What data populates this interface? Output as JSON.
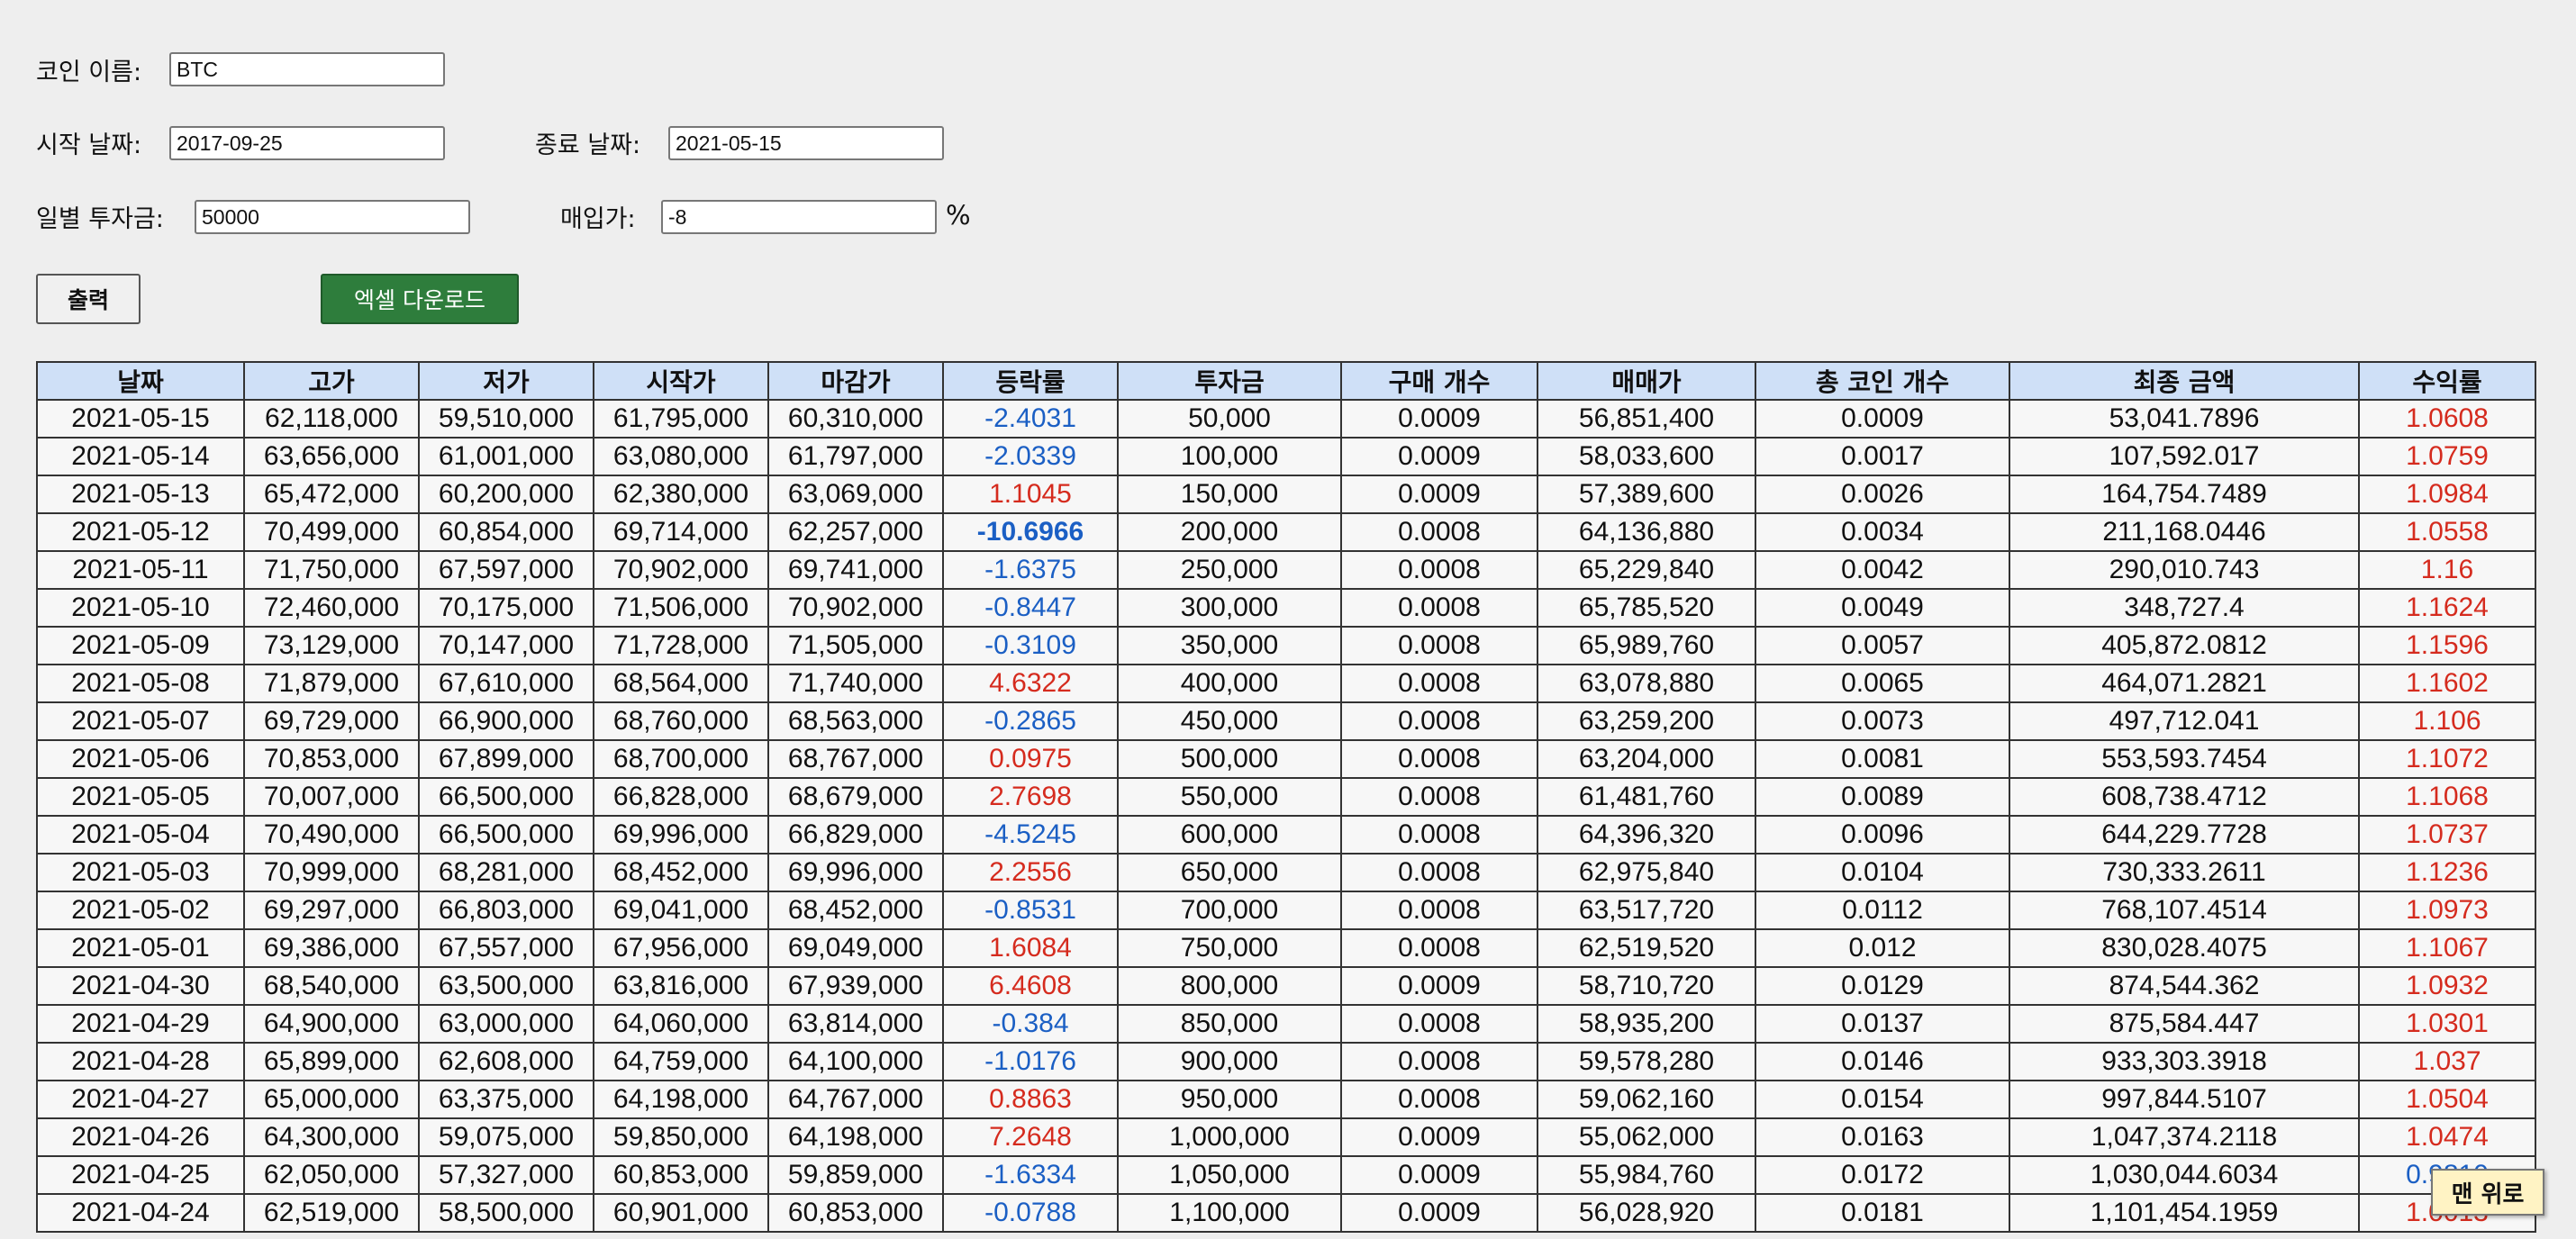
{
  "form": {
    "coin_label": "코인 이름:",
    "coin_value": "BTC",
    "start_label": "시작 날짜:",
    "start_value": "2017-09-25",
    "end_label": "종료 날짜:",
    "end_value": "2021-05-15",
    "daily_label": "일별 투자금:",
    "daily_value": "50000",
    "buy_label": "매입가:",
    "buy_value": "-8",
    "buy_unit": "%"
  },
  "buttons": {
    "print_label": "출력",
    "excel_label": "엑셀 다운로드",
    "top_label": "맨 위로"
  },
  "colors": {
    "header_bg": "#cfe0f7",
    "excel_bg": "#2e7d3c",
    "negative": "#1b5fc4",
    "positive": "#d52b1e"
  },
  "table": {
    "headers": [
      "날짜",
      "고가",
      "저가",
      "시작가",
      "마감가",
      "등락률",
      "투자금",
      "구매 개수",
      "매매가",
      "총 코인 개수",
      "최종 금액",
      "수익률"
    ],
    "rows": [
      [
        "2021-05-15",
        "62,118,000",
        "59,510,000",
        "61,795,000",
        "60,310,000",
        "-2.4031",
        "50,000",
        "0.0009",
        "56,851,400",
        "0.0009",
        "53,041.7896",
        "1.0608"
      ],
      [
        "2021-05-14",
        "63,656,000",
        "61,001,000",
        "63,080,000",
        "61,797,000",
        "-2.0339",
        "100,000",
        "0.0009",
        "58,033,600",
        "0.0017",
        "107,592.017",
        "1.0759"
      ],
      [
        "2021-05-13",
        "65,472,000",
        "60,200,000",
        "62,380,000",
        "63,069,000",
        "1.1045",
        "150,000",
        "0.0009",
        "57,389,600",
        "0.0026",
        "164,754.7489",
        "1.0984"
      ],
      [
        "2021-05-12",
        "70,499,000",
        "60,854,000",
        "69,714,000",
        "62,257,000",
        "-10.6966",
        "200,000",
        "0.0008",
        "64,136,880",
        "0.0034",
        "211,168.0446",
        "1.0558"
      ],
      [
        "2021-05-11",
        "71,750,000",
        "67,597,000",
        "70,902,000",
        "69,741,000",
        "-1.6375",
        "250,000",
        "0.0008",
        "65,229,840",
        "0.0042",
        "290,010.743",
        "1.16"
      ],
      [
        "2021-05-10",
        "72,460,000",
        "70,175,000",
        "71,506,000",
        "70,902,000",
        "-0.8447",
        "300,000",
        "0.0008",
        "65,785,520",
        "0.0049",
        "348,727.4",
        "1.1624"
      ],
      [
        "2021-05-09",
        "73,129,000",
        "70,147,000",
        "71,728,000",
        "71,505,000",
        "-0.3109",
        "350,000",
        "0.0008",
        "65,989,760",
        "0.0057",
        "405,872.0812",
        "1.1596"
      ],
      [
        "2021-05-08",
        "71,879,000",
        "67,610,000",
        "68,564,000",
        "71,740,000",
        "4.6322",
        "400,000",
        "0.0008",
        "63,078,880",
        "0.0065",
        "464,071.2821",
        "1.1602"
      ],
      [
        "2021-05-07",
        "69,729,000",
        "66,900,000",
        "68,760,000",
        "68,563,000",
        "-0.2865",
        "450,000",
        "0.0008",
        "63,259,200",
        "0.0073",
        "497,712.041",
        "1.106"
      ],
      [
        "2021-05-06",
        "70,853,000",
        "67,899,000",
        "68,700,000",
        "68,767,000",
        "0.0975",
        "500,000",
        "0.0008",
        "63,204,000",
        "0.0081",
        "553,593.7454",
        "1.1072"
      ],
      [
        "2021-05-05",
        "70,007,000",
        "66,500,000",
        "66,828,000",
        "68,679,000",
        "2.7698",
        "550,000",
        "0.0008",
        "61,481,760",
        "0.0089",
        "608,738.4712",
        "1.1068"
      ],
      [
        "2021-05-04",
        "70,490,000",
        "66,500,000",
        "69,996,000",
        "66,829,000",
        "-4.5245",
        "600,000",
        "0.0008",
        "64,396,320",
        "0.0096",
        "644,229.7728",
        "1.0737"
      ],
      [
        "2021-05-03",
        "70,999,000",
        "68,281,000",
        "68,452,000",
        "69,996,000",
        "2.2556",
        "650,000",
        "0.0008",
        "62,975,840",
        "0.0104",
        "730,333.2611",
        "1.1236"
      ],
      [
        "2021-05-02",
        "69,297,000",
        "66,803,000",
        "69,041,000",
        "68,452,000",
        "-0.8531",
        "700,000",
        "0.0008",
        "63,517,720",
        "0.0112",
        "768,107.4514",
        "1.0973"
      ],
      [
        "2021-05-01",
        "69,386,000",
        "67,557,000",
        "67,956,000",
        "69,049,000",
        "1.6084",
        "750,000",
        "0.0008",
        "62,519,520",
        "0.012",
        "830,028.4075",
        "1.1067"
      ],
      [
        "2021-04-30",
        "68,540,000",
        "63,500,000",
        "63,816,000",
        "67,939,000",
        "6.4608",
        "800,000",
        "0.0009",
        "58,710,720",
        "0.0129",
        "874,544.362",
        "1.0932"
      ],
      [
        "2021-04-29",
        "64,900,000",
        "63,000,000",
        "64,060,000",
        "63,814,000",
        "-0.384",
        "850,000",
        "0.0008",
        "58,935,200",
        "0.0137",
        "875,584.447",
        "1.0301"
      ],
      [
        "2021-04-28",
        "65,899,000",
        "62,608,000",
        "64,759,000",
        "64,100,000",
        "-1.0176",
        "900,000",
        "0.0008",
        "59,578,280",
        "0.0146",
        "933,303.3918",
        "1.037"
      ],
      [
        "2021-04-27",
        "65,000,000",
        "63,375,000",
        "64,198,000",
        "64,767,000",
        "0.8863",
        "950,000",
        "0.0008",
        "59,062,160",
        "0.0154",
        "997,844.5107",
        "1.0504"
      ],
      [
        "2021-04-26",
        "64,300,000",
        "59,075,000",
        "59,850,000",
        "64,198,000",
        "7.2648",
        "1,000,000",
        "0.0009",
        "55,062,000",
        "0.0163",
        "1,047,374.2118",
        "1.0474"
      ],
      [
        "2021-04-25",
        "62,050,000",
        "57,327,000",
        "60,853,000",
        "59,859,000",
        "-1.6334",
        "1,050,000",
        "0.0009",
        "55,984,760",
        "0.0172",
        "1,030,044.6034",
        "0.9810"
      ],
      [
        "2021-04-24",
        "62,519,000",
        "58,500,000",
        "60,901,000",
        "60,853,000",
        "-0.0788",
        "1,100,000",
        "0.0009",
        "56,028,920",
        "0.0181",
        "1,101,454.1959",
        "1.0013"
      ]
    ]
  }
}
